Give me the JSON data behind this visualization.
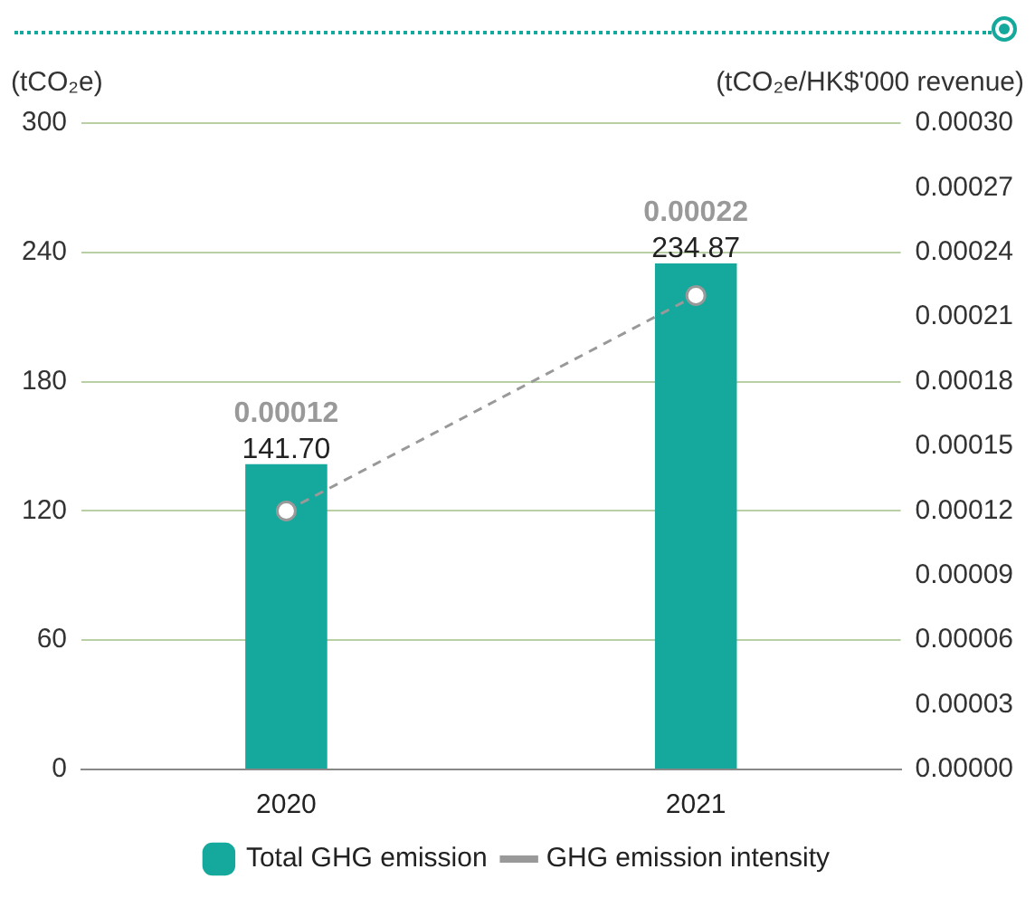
{
  "chart_data": {
    "type": "bar",
    "categories": [
      "2020",
      "2021"
    ],
    "ylabel": "(tCO₂e)",
    "y2label": "(tCO₂e/HK$'000 revenue)",
    "ylim": [
      0,
      300
    ],
    "yticks": [
      0,
      60,
      120,
      180,
      240,
      300
    ],
    "y2lim": [
      0,
      0.0003
    ],
    "y2ticks": [
      {
        "value": 0,
        "label": "0.00000"
      },
      {
        "value": 3e-05,
        "label": "0.00003"
      },
      {
        "value": 6e-05,
        "label": "0.00006"
      },
      {
        "value": 9e-05,
        "label": "0.00009"
      },
      {
        "value": 0.00012,
        "label": "0.00012"
      },
      {
        "value": 0.00015,
        "label": "0.00015"
      },
      {
        "value": 0.00018,
        "label": "0.00018"
      },
      {
        "value": 0.00021,
        "label": "0.00021"
      },
      {
        "value": 0.00024,
        "label": "0.00024"
      },
      {
        "value": 0.00027,
        "label": "0.00027"
      },
      {
        "value": 0.0003,
        "label": "0.00030"
      }
    ],
    "grid": "y",
    "legend": "bottom",
    "series": [
      {
        "name": "Total GHG emission",
        "color": "#14a99c",
        "values": [
          141.7,
          234.87
        ],
        "value_labels": [
          "141.70",
          "234.87"
        ]
      },
      {
        "type": "line",
        "name": "GHG emission intensity",
        "color": "#999999",
        "axis": "y2",
        "line_style": "dashed",
        "marker": "circle",
        "values": [
          0.00012,
          0.00022
        ],
        "value_labels": [
          "0.00012",
          "0.00022"
        ]
      }
    ]
  }
}
